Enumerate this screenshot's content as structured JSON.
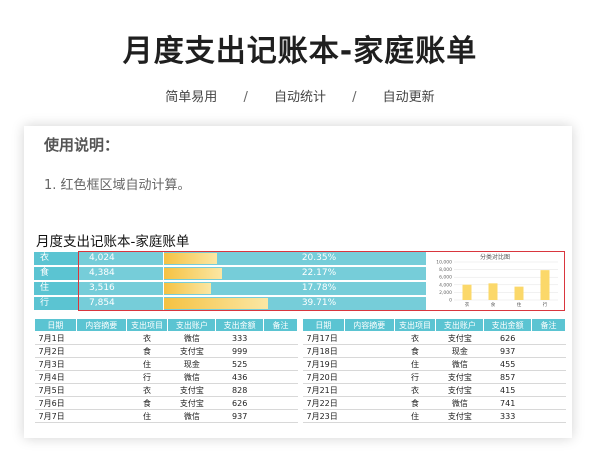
{
  "hero": {
    "title": "月度支出记账本-家庭账单",
    "tags": [
      "简单易用",
      "自动统计",
      "自动更新"
    ],
    "separator": "/"
  },
  "usage": {
    "title": "使用说明：",
    "note": "1. 红色框区域自动计算。"
  },
  "book_title": "月度支出记账本-家庭账单",
  "summary": [
    {
      "category": "衣",
      "amount": "4,024",
      "percent": "20.35%",
      "share": 0.2035
    },
    {
      "category": "食",
      "amount": "4,384",
      "percent": "22.17%",
      "share": 0.2217
    },
    {
      "category": "住",
      "amount": "3,516",
      "percent": "17.78%",
      "share": 0.1778
    },
    {
      "category": "行",
      "amount": "7,854",
      "percent": "39.71%",
      "share": 0.3971
    }
  ],
  "chart_data": {
    "type": "bar",
    "title": "分类对比图",
    "categories": [
      "衣",
      "食",
      "住",
      "行"
    ],
    "values": [
      4024,
      4384,
      3516,
      7854
    ],
    "ylim": [
      0,
      10000
    ],
    "yticks": [
      "10,000",
      "8,000",
      "6,000",
      "4,000",
      "2,000",
      "0"
    ],
    "ytick_values": [
      10000,
      8000,
      6000,
      4000,
      2000,
      0
    ],
    "bar_color": "#fbd86a",
    "grid": true,
    "xlabel": "",
    "ylabel": ""
  },
  "table": {
    "headers": [
      "日期",
      "内容摘要",
      "支出项目",
      "支出账户",
      "支出金额",
      "备注"
    ],
    "left_rows": [
      [
        "7月1日",
        "",
        "衣",
        "微信",
        "333",
        ""
      ],
      [
        "7月2日",
        "",
        "食",
        "支付宝",
        "999",
        ""
      ],
      [
        "7月3日",
        "",
        "住",
        "现金",
        "525",
        ""
      ],
      [
        "7月4日",
        "",
        "行",
        "微信",
        "436",
        ""
      ],
      [
        "7月5日",
        "",
        "衣",
        "支付宝",
        "828",
        ""
      ],
      [
        "7月6日",
        "",
        "食",
        "支付宝",
        "626",
        ""
      ],
      [
        "7月7日",
        "",
        "住",
        "微信",
        "937",
        ""
      ]
    ],
    "right_rows": [
      [
        "7月17日",
        "",
        "衣",
        "支付宝",
        "626",
        ""
      ],
      [
        "7月18日",
        "",
        "食",
        "现金",
        "937",
        ""
      ],
      [
        "7月19日",
        "",
        "住",
        "微信",
        "455",
        ""
      ],
      [
        "7月20日",
        "",
        "行",
        "支付宝",
        "857",
        ""
      ],
      [
        "7月21日",
        "",
        "衣",
        "支付宝",
        "415",
        ""
      ],
      [
        "7月22日",
        "",
        "食",
        "微信",
        "741",
        ""
      ],
      [
        "7月23日",
        "",
        "住",
        "支付宝",
        "333",
        ""
      ]
    ]
  },
  "colors": {
    "header_teal": "#5bc4d2",
    "summary_teal": "#76cdd9",
    "frame_red": "#d9363e",
    "bar_gold": "#f5c242"
  }
}
